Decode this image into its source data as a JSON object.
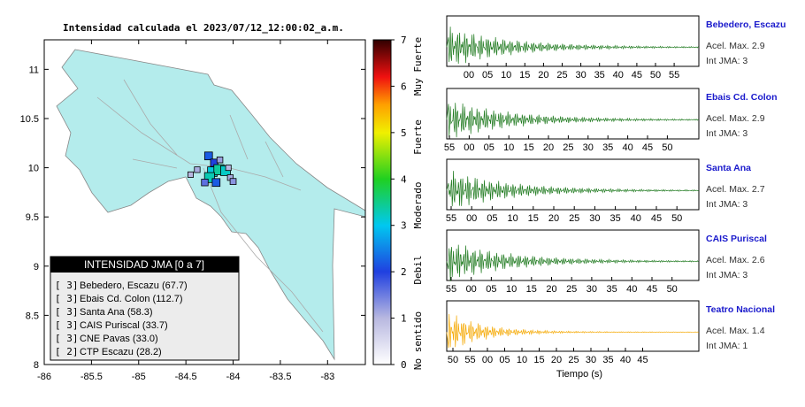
{
  "map": {
    "title": "Intensidad calculada el 2023/07/12_12:00:02_a.m.",
    "xlim": [
      -86,
      -82.6
    ],
    "ylim": [
      8,
      11.3
    ],
    "xticks": [
      -86,
      -85.5,
      -85,
      -84.5,
      -84,
      -83.5,
      -83
    ],
    "yticks": [
      8,
      8.5,
      9,
      9.5,
      10,
      10.5,
      11
    ],
    "land_color": "#b4ecec",
    "stations": [
      {
        "lon": -84.26,
        "lat": 10.12,
        "intensity": 2.2
      },
      {
        "lon": -84.2,
        "lat": 10.05,
        "intensity": 2
      },
      {
        "lon": -84.14,
        "lat": 10.08,
        "intensity": 1.2
      },
      {
        "lon": -84.22,
        "lat": 9.96,
        "intensity": 3.1
      },
      {
        "lon": -84.15,
        "lat": 9.98,
        "intensity": 3.4
      },
      {
        "lon": -84.08,
        "lat": 9.97,
        "intensity": 3.2
      },
      {
        "lon": -84.25,
        "lat": 9.9,
        "intensity": 3.3
      },
      {
        "lon": -84.18,
        "lat": 9.85,
        "intensity": 2.2
      },
      {
        "lon": -84.3,
        "lat": 9.85,
        "intensity": 1.6
      },
      {
        "lon": -84.03,
        "lat": 9.9,
        "intensity": 1.1
      },
      {
        "lon": -84.0,
        "lat": 9.86,
        "intensity": 1.3
      },
      {
        "lon": -84.38,
        "lat": 9.98,
        "intensity": 1.1
      },
      {
        "lon": -84.45,
        "lat": 9.93,
        "intensity": 1.0
      },
      {
        "lon": -84.05,
        "lat": 10.0,
        "intensity": 1.0
      }
    ],
    "colorbar": {
      "lim": [
        0,
        7
      ],
      "ticks": [
        0,
        1,
        2,
        3,
        4,
        5,
        6,
        7
      ],
      "colormap": [
        {
          "value": 0,
          "color": "#ffffff"
        },
        {
          "value": 1,
          "color": "#b8b8e0"
        },
        {
          "value": 2,
          "color": "#2040e0"
        },
        {
          "value": 3,
          "color": "#00c8f0"
        },
        {
          "value": 4,
          "color": "#20d020"
        },
        {
          "value": 5,
          "color": "#f0f000"
        },
        {
          "value": 5.6,
          "color": "#ffa000"
        },
        {
          "value": 6.2,
          "color": "#f01010"
        },
        {
          "value": 7,
          "color": "#300000"
        }
      ],
      "labels": [
        "Muy Fuerte",
        "Fuerte",
        "Moderado",
        "Debil",
        "No sentido"
      ]
    },
    "legend": {
      "title": "INTENSIDAD JMA [0 a 7]",
      "rows": [
        {
          "level": "[ 3]",
          "name": "Bebedero, Escazu (67.7)"
        },
        {
          "level": "[ 3]",
          "name": "Ebais Cd. Colon (112.7)"
        },
        {
          "level": "[ 3]",
          "name": "Santa Ana (58.3)"
        },
        {
          "level": "[ 3]",
          "name": "CAIS Puriscal (33.7)"
        },
        {
          "level": "[ 3]",
          "name": "CNE Pavas (33.0)"
        },
        {
          "level": "[ 2]",
          "name": "CTP Escazu (28.2)"
        }
      ]
    }
  },
  "records": {
    "xlabel": "Tiempo (s)",
    "panels": [
      {
        "station": "Bebedero, Escazu",
        "acel": "Acel. Max. 2.9",
        "int": "Int JMA: 3",
        "color": "#1f7a1f",
        "ticks": [
          "00",
          "05",
          "10",
          "15",
          "20",
          "25",
          "30",
          "35",
          "40",
          "45",
          "50",
          "55"
        ]
      },
      {
        "station": "Ebais Cd. Colon",
        "acel": "Acel. Max. 2.9",
        "int": "Int JMA: 3",
        "color": "#1f7a1f",
        "ticks": [
          "55",
          "00",
          "05",
          "10",
          "15",
          "20",
          "25",
          "30",
          "35",
          "40",
          "45",
          "50"
        ]
      },
      {
        "station": "Santa Ana",
        "acel": "Acel. Max. 2.7",
        "int": "Int JMA: 3",
        "color": "#1f7a1f",
        "ticks": [
          "55",
          "00",
          "05",
          "10",
          "15",
          "20",
          "25",
          "30",
          "35",
          "40",
          "45",
          "50"
        ]
      },
      {
        "station": "CAIS Puriscal",
        "acel": "Acel. Max. 2.6",
        "int": "Int JMA: 3",
        "color": "#1f7a1f",
        "ticks": [
          "55",
          "00",
          "05",
          "10",
          "15",
          "20",
          "25",
          "30",
          "35",
          "40",
          "45",
          "50"
        ]
      },
      {
        "station": "Teatro Nacional",
        "acel": "Acel. Max. 1.4",
        "int": "Int JMA: 1",
        "color": "#f5a800",
        "ticks": [
          "50",
          "55",
          "00",
          "05",
          "10",
          "15",
          "20",
          "25",
          "30",
          "35",
          "40",
          "45"
        ]
      }
    ]
  }
}
